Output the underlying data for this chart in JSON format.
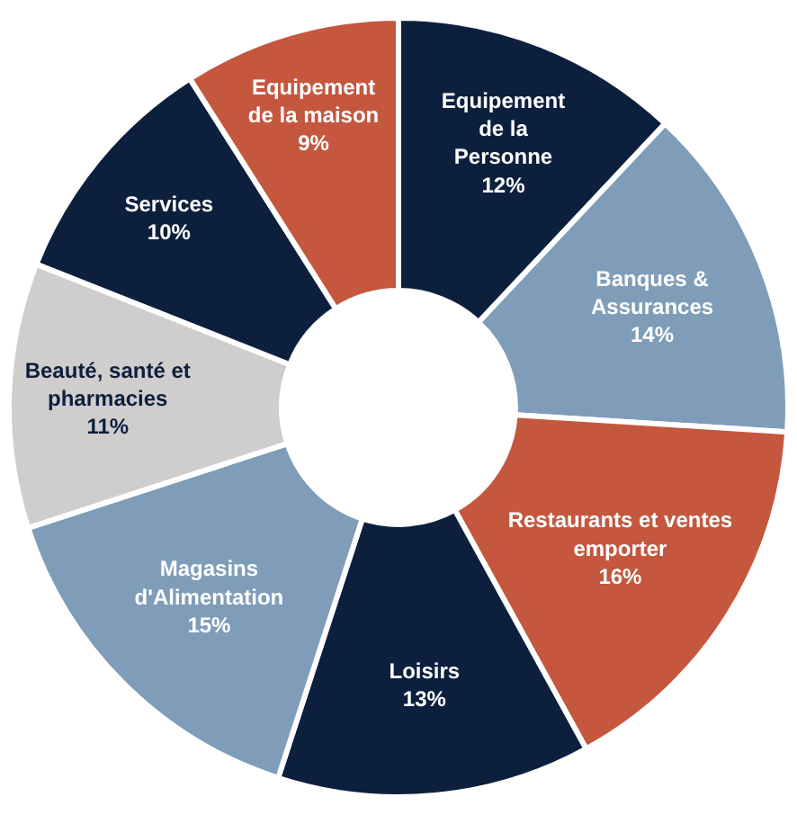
{
  "chart_data": {
    "type": "donut",
    "categories": [
      "Equipement\nde la\nPersonne",
      "Banques &\nAssurances",
      "Restaurants et ventes\nemporter",
      "Loisirs",
      "Magasins\nd'Alimentation",
      "Beauté, santé et\npharmacies",
      "Services",
      "Equipement\nde la maison"
    ],
    "values": [
      12,
      14,
      16,
      13,
      15,
      11,
      10,
      9
    ],
    "value_labels": [
      "12%",
      "14%",
      "16%",
      "13%",
      "15%",
      "11%",
      "10%",
      "9%"
    ],
    "colors": [
      "#0c1f3d",
      "#7f9db9",
      "#c4573e",
      "#0c1f3d",
      "#7f9db9",
      "#d0cdcd",
      "#0c1f3d",
      "#c4573e"
    ],
    "legend": false
  }
}
